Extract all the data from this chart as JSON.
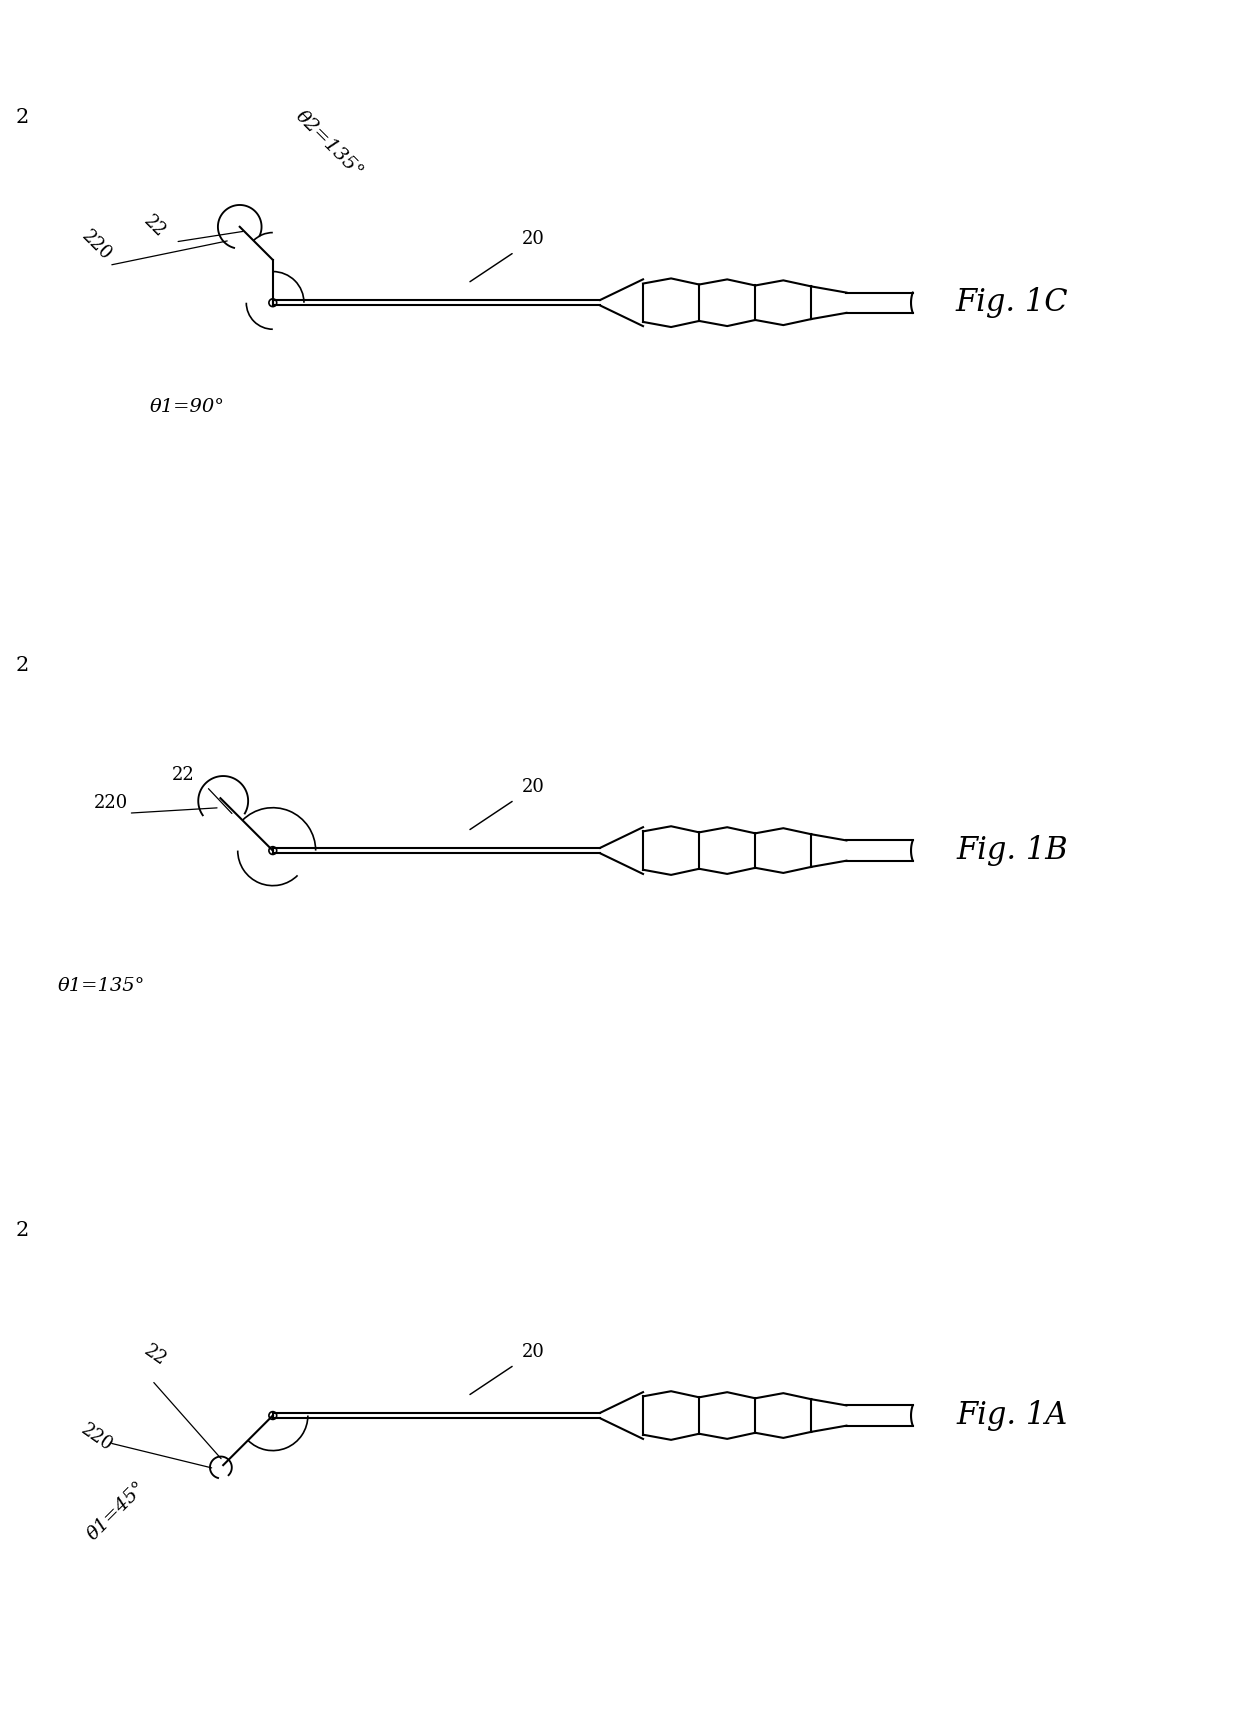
{
  "bg_color": "#ffffff",
  "line_color": "#000000",
  "fig_width": 12.4,
  "fig_height": 17.12,
  "lw": 1.5,
  "panels": [
    {
      "label": "Fig. 1A",
      "theta1_deg": 45,
      "theta2_deg": null,
      "label_theta1": "θ1=45°",
      "label_theta2": null
    },
    {
      "label": "Fig. 1B",
      "theta1_deg": 135,
      "theta2_deg": null,
      "label_theta1": "θ1=135°",
      "label_theta2": null
    },
    {
      "label": "Fig. 1C",
      "theta1_deg": 90,
      "theta2_deg": 135,
      "label_theta1": "θ1=90°",
      "label_theta2": "θ2=135°"
    }
  ]
}
